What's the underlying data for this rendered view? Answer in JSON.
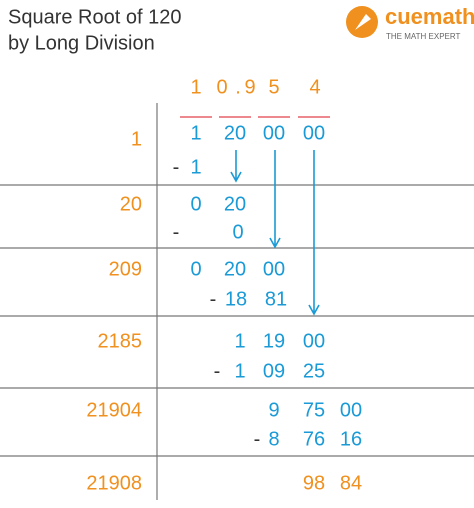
{
  "header": {
    "title_line1": "Square Root of 120",
    "title_line2": "by Long Division"
  },
  "logo": {
    "brand": "cuemath",
    "tagline": "THE MATH EXPERT"
  },
  "quotient": [
    "1",
    "0",
    ".",
    "9",
    "5",
    "4"
  ],
  "steps": [
    {
      "divisor": "1",
      "dividend": [
        "1",
        "20",
        "00",
        "00"
      ],
      "subtract": [
        "-",
        "1"
      ]
    },
    {
      "divisor": "20",
      "dividend": [
        "0",
        "20"
      ],
      "subtract": [
        "-",
        "0"
      ]
    },
    {
      "divisor": "209",
      "dividend": [
        "0",
        "20",
        "00"
      ],
      "subtract": [
        "-",
        "18",
        "81"
      ]
    },
    {
      "divisor": "2185",
      "dividend": [
        "1",
        "19",
        "00"
      ],
      "subtract": [
        "-",
        "1",
        "09",
        "25"
      ]
    },
    {
      "divisor": "21904",
      "dividend": [
        "9",
        "75",
        "00"
      ],
      "subtract": [
        "-",
        "8",
        "76",
        "16"
      ]
    }
  ],
  "remainder": {
    "divisor": "21908",
    "value": [
      "98",
      "84"
    ]
  }
}
